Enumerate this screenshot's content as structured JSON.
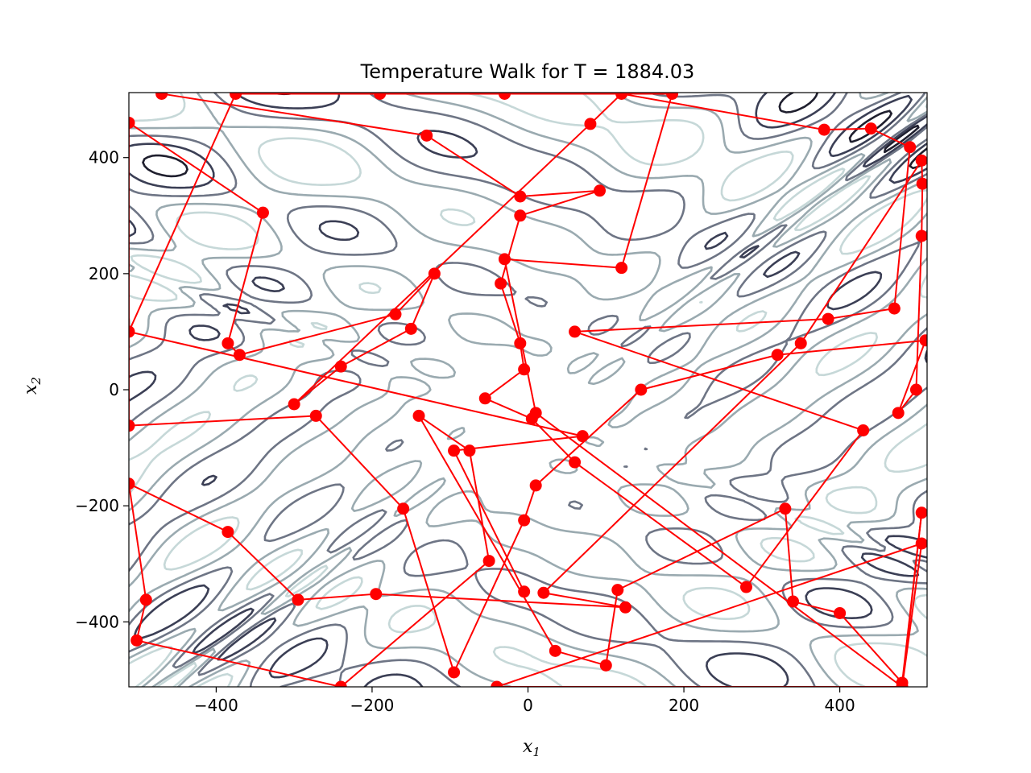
{
  "chart_data": {
    "type": "line",
    "title": "Temperature Walk for T = 1884.03",
    "xlabel": "x",
    "xlabel_sub": "1",
    "ylabel": "x",
    "ylabel_sub": "2",
    "xlim": [
      -512,
      512
    ],
    "ylim": [
      -512,
      512
    ],
    "xticks": [
      -400,
      -200,
      0,
      200,
      400
    ],
    "yticks": [
      -400,
      -200,
      0,
      200,
      400
    ],
    "xtick_labels": [
      "−400",
      "−200",
      "0",
      "200",
      "400"
    ],
    "ytick_labels": [
      "−400",
      "−200",
      "0",
      "200",
      "400"
    ],
    "grid": false,
    "background": "contour plot of the objective function (grey / blue-grey level curves)",
    "contour_colors": [
      "#1f1f2e",
      "#3b3f55",
      "#6e7585",
      "#9aaab0",
      "#c6d8d8"
    ],
    "series": [
      {
        "color": "#ff0000",
        "marker": "circle",
        "points": [
          [
            -470,
            510
          ],
          [
            -130,
            438
          ],
          [
            -10,
            333
          ],
          [
            92,
            343
          ],
          [
            -10,
            300
          ],
          [
            -35,
            183
          ],
          [
            -10,
            80
          ],
          [
            -5,
            35
          ],
          [
            -55,
            -15
          ],
          [
            5,
            -50
          ],
          [
            60,
            -125
          ],
          [
            280,
            -340
          ],
          [
            430,
            -70
          ],
          [
            60,
            100
          ],
          [
            385,
            122
          ],
          [
            470,
            140
          ],
          [
            490,
            418
          ],
          [
            440,
            450
          ],
          [
            380,
            448
          ],
          [
            120,
            510
          ],
          [
            80,
            458
          ],
          [
            -300,
            -25
          ],
          [
            -240,
            40
          ],
          [
            -150,
            105
          ],
          [
            -120,
            200
          ],
          [
            -170,
            130
          ],
          [
            -370,
            60
          ],
          [
            -385,
            80
          ],
          [
            -340,
            305
          ],
          [
            -512,
            460
          ],
          [
            -512,
            -62
          ],
          [
            -272,
            -45
          ],
          [
            -160,
            -205
          ],
          [
            -95,
            -487
          ],
          [
            -5,
            -225
          ],
          [
            10,
            -165
          ],
          [
            145,
            0
          ],
          [
            320,
            60
          ],
          [
            510,
            85
          ],
          [
            475,
            -40
          ],
          [
            498,
            0
          ],
          [
            505,
            265
          ],
          [
            506,
            355
          ],
          [
            505,
            395
          ],
          [
            350,
            80
          ],
          [
            20,
            -350
          ],
          [
            125,
            -375
          ],
          [
            -195,
            -352
          ],
          [
            -295,
            -362
          ],
          [
            -385,
            -245
          ],
          [
            -512,
            -162
          ],
          [
            -490,
            -362
          ],
          [
            -502,
            -432
          ],
          [
            -240,
            -512
          ],
          [
            -50,
            -295
          ],
          [
            -75,
            -105
          ],
          [
            -140,
            -45
          ],
          [
            35,
            -450
          ],
          [
            100,
            -475
          ],
          [
            115,
            -345
          ],
          [
            330,
            -205
          ],
          [
            340,
            -365
          ],
          [
            400,
            -385
          ],
          [
            480,
            -505
          ],
          [
            505,
            -212
          ],
          [
            480,
            -512
          ],
          [
            505,
            -265
          ],
          [
            -40,
            -512
          ],
          [
            480,
            -512
          ],
          [
            10,
            -40
          ],
          [
            -30,
            225
          ],
          [
            120,
            210
          ],
          [
            185,
            510
          ],
          [
            -30,
            510
          ],
          [
            -190,
            510
          ],
          [
            -375,
            510
          ],
          [
            -512,
            100
          ],
          [
            70,
            -80
          ],
          [
            -95,
            -105
          ],
          [
            -5,
            -348
          ]
        ]
      }
    ]
  }
}
